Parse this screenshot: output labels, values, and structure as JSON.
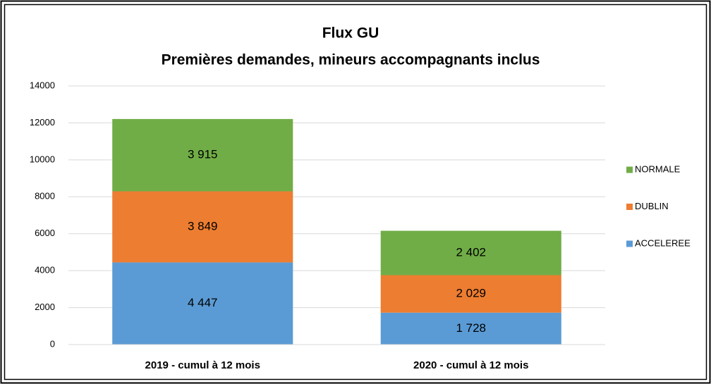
{
  "chart_data": {
    "type": "stacked_bar",
    "title": "Flux GU",
    "subtitle": "Premières demandes, mineurs accompagnants inclus",
    "categories": [
      "2019 - cumul à 12 mois",
      "2020 - cumul à 12 mois"
    ],
    "series": [
      {
        "name": "ACCELEREE",
        "color": "#5b9bd5",
        "values": [
          4447,
          1728
        ],
        "value_labels": [
          "4 447",
          "1 728"
        ]
      },
      {
        "name": "DUBLIN",
        "color": "#ed7d31",
        "values": [
          3849,
          2029
        ],
        "value_labels": [
          "3 849",
          "2 029"
        ]
      },
      {
        "name": "NORMALE",
        "color": "#70ad47",
        "values": [
          3915,
          2402
        ],
        "value_labels": [
          "3 915",
          "2 402"
        ]
      }
    ],
    "ylim": [
      0,
      14000
    ],
    "yticks": [
      0,
      2000,
      4000,
      6000,
      8000,
      10000,
      12000,
      14000
    ],
    "grid": true,
    "legend": "right"
  }
}
